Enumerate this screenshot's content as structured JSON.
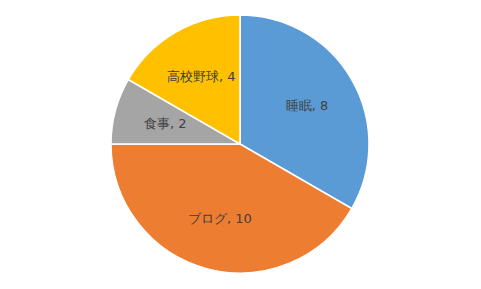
{
  "chart_data": {
    "type": "pie",
    "categories": [
      "睡眠",
      "ブログ",
      "食事",
      "高校野球"
    ],
    "values": [
      8,
      10,
      2,
      4
    ],
    "value_labels": [
      "睡眠, 8",
      "ブログ, 10",
      "食事, 2",
      "高校野球, 4"
    ],
    "colors": [
      "#5b9bd5",
      "#ed7d31",
      "#a5a5a5",
      "#ffc000"
    ],
    "data_labels": true
  }
}
